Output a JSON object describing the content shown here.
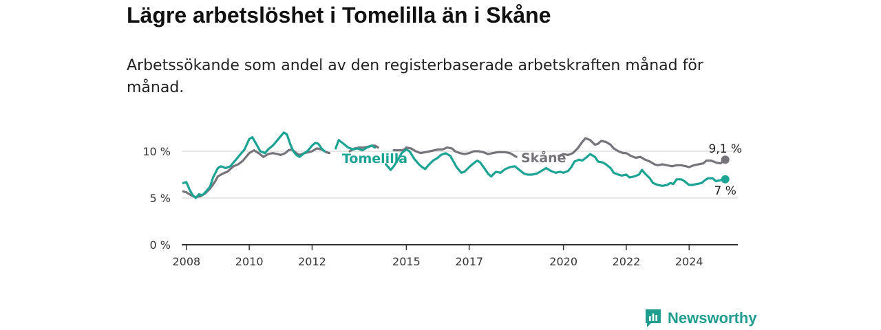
{
  "title": "Lägre arbetslöshet i Tomelilla än i Skåne",
  "subtitle": "Arbetssökande som andel av den registerbaserade arbetskraften månad för månad.",
  "logo": {
    "text": "Newsworthy",
    "icon": "newsworthy-logo-icon"
  },
  "colors": {
    "tomelilla": "#1ba393",
    "skane": "#76737a",
    "axis": "#333333",
    "grid": "#d6d6d6"
  },
  "chart_data": {
    "type": "line",
    "title": "Lägre arbetslöshet i Tomelilla än i Skåne",
    "xlabel": "",
    "ylabel": "",
    "xlim": [
      2007.85,
      2025.55
    ],
    "ylim": [
      0,
      12.5
    ],
    "y_ticks": [
      {
        "value": 0,
        "label": "0 %"
      },
      {
        "value": 5,
        "label": "5 %"
      },
      {
        "value": 10,
        "label": "10 %"
      }
    ],
    "x_ticks": [
      {
        "value": 2008,
        "label": "2008"
      },
      {
        "value": 2010,
        "label": "2010"
      },
      {
        "value": 2012,
        "label": "2012"
      },
      {
        "value": 2015,
        "label": "2015"
      },
      {
        "value": 2017,
        "label": "2017"
      },
      {
        "value": 2020,
        "label": "2020"
      },
      {
        "value": 2022,
        "label": "2022"
      },
      {
        "value": 2024,
        "label": "2024"
      }
    ],
    "series": [
      {
        "name": "Tomelilla",
        "label": "Tomelilla",
        "end_label": "7 %",
        "color": "#1ba393",
        "points": [
          [
            2007.9,
            6.6
          ],
          [
            2008.0,
            6.7
          ],
          [
            2008.1,
            5.9
          ],
          [
            2008.2,
            5.3
          ],
          [
            2008.3,
            5.0
          ],
          [
            2008.4,
            5.4
          ],
          [
            2008.5,
            5.3
          ],
          [
            2008.6,
            5.6
          ],
          [
            2008.75,
            6.2
          ],
          [
            2008.85,
            7.2
          ],
          [
            2009.0,
            8.2
          ],
          [
            2009.1,
            8.4
          ],
          [
            2009.25,
            8.2
          ],
          [
            2009.4,
            8.4
          ],
          [
            2009.55,
            9.0
          ],
          [
            2009.7,
            9.6
          ],
          [
            2009.85,
            10.2
          ],
          [
            2010.0,
            11.3
          ],
          [
            2010.1,
            11.5
          ],
          [
            2010.25,
            10.6
          ],
          [
            2010.35,
            10.0
          ],
          [
            2010.5,
            9.8
          ],
          [
            2010.6,
            10.2
          ],
          [
            2010.75,
            10.6
          ],
          [
            2010.9,
            11.2
          ],
          [
            2011.0,
            11.6
          ],
          [
            2011.1,
            12.0
          ],
          [
            2011.2,
            11.8
          ],
          [
            2011.3,
            10.8
          ],
          [
            2011.4,
            10.0
          ],
          [
            2011.5,
            9.6
          ],
          [
            2011.6,
            9.4
          ],
          [
            2011.75,
            9.8
          ],
          [
            2011.85,
            10.0
          ],
          [
            2012.0,
            10.6
          ],
          [
            2012.1,
            10.9
          ],
          [
            2012.2,
            10.8
          ],
          [
            2012.3,
            10.3
          ],
          [
            2012.4,
            10.0
          ],
          null,
          [
            2012.75,
            10.3
          ],
          [
            2012.85,
            11.2
          ],
          [
            2013.0,
            10.8
          ],
          [
            2013.15,
            10.4
          ],
          [
            2013.3,
            10.2
          ],
          [
            2013.45,
            10.3
          ],
          [
            2013.6,
            10.1
          ],
          [
            2013.75,
            10.4
          ],
          [
            2013.9,
            10.6
          ],
          [
            2014.0,
            10.4
          ],
          null,
          [
            2014.35,
            8.6
          ],
          [
            2014.5,
            8.0
          ],
          [
            2014.6,
            8.4
          ],
          [
            2014.75,
            9.2
          ],
          [
            2014.85,
            9.8
          ],
          [
            2015.0,
            10.2
          ],
          [
            2015.1,
            10.0
          ],
          [
            2015.25,
            9.2
          ],
          [
            2015.4,
            8.6
          ],
          [
            2015.5,
            8.3
          ],
          [
            2015.6,
            8.1
          ],
          [
            2015.7,
            8.5
          ],
          [
            2015.85,
            9.0
          ],
          [
            2016.0,
            9.3
          ],
          [
            2016.1,
            9.6
          ],
          [
            2016.25,
            9.8
          ],
          [
            2016.4,
            9.5
          ],
          [
            2016.5,
            8.9
          ],
          [
            2016.6,
            8.3
          ],
          [
            2016.75,
            7.7
          ],
          [
            2016.85,
            7.8
          ],
          [
            2017.0,
            8.3
          ],
          [
            2017.1,
            8.6
          ],
          [
            2017.25,
            9.0
          ],
          [
            2017.35,
            8.8
          ],
          [
            2017.5,
            8.1
          ],
          [
            2017.6,
            7.6
          ],
          [
            2017.7,
            7.3
          ],
          [
            2017.85,
            7.8
          ],
          [
            2018.0,
            7.7
          ],
          [
            2018.15,
            8.1
          ],
          [
            2018.3,
            8.3
          ],
          [
            2018.45,
            8.4
          ],
          [
            2018.6,
            8.0
          ],
          [
            2018.75,
            7.6
          ],
          [
            2018.85,
            7.5
          ],
          [
            2019.0,
            7.5
          ],
          [
            2019.15,
            7.6
          ],
          [
            2019.3,
            7.9
          ],
          [
            2019.45,
            8.2
          ],
          [
            2019.6,
            7.9
          ],
          [
            2019.75,
            7.7
          ],
          [
            2019.9,
            7.8
          ],
          [
            2020.0,
            7.7
          ],
          [
            2020.15,
            7.9
          ],
          [
            2020.25,
            8.3
          ],
          [
            2020.35,
            8.9
          ],
          [
            2020.5,
            9.1
          ],
          [
            2020.6,
            9.0
          ],
          [
            2020.75,
            9.4
          ],
          [
            2020.85,
            9.7
          ],
          [
            2021.0,
            9.4
          ],
          [
            2021.1,
            8.9
          ],
          [
            2021.25,
            8.8
          ],
          [
            2021.35,
            8.6
          ],
          [
            2021.5,
            8.2
          ],
          [
            2021.6,
            7.7
          ],
          [
            2021.75,
            7.5
          ],
          [
            2021.85,
            7.4
          ],
          [
            2022.0,
            7.5
          ],
          [
            2022.1,
            7.2
          ],
          [
            2022.25,
            7.3
          ],
          [
            2022.4,
            7.5
          ],
          [
            2022.5,
            8.0
          ],
          [
            2022.6,
            7.6
          ],
          [
            2022.75,
            7.1
          ],
          [
            2022.85,
            6.6
          ],
          [
            2023.0,
            6.4
          ],
          [
            2023.15,
            6.3
          ],
          [
            2023.3,
            6.4
          ],
          [
            2023.4,
            6.6
          ],
          [
            2023.5,
            6.5
          ],
          [
            2023.6,
            7.0
          ],
          [
            2023.75,
            7.0
          ],
          [
            2023.85,
            6.8
          ],
          [
            2024.0,
            6.4
          ],
          [
            2024.1,
            6.4
          ],
          [
            2024.25,
            6.5
          ],
          [
            2024.4,
            6.6
          ],
          [
            2024.5,
            6.9
          ],
          [
            2024.6,
            7.1
          ],
          [
            2024.75,
            7.1
          ],
          [
            2024.85,
            6.8
          ],
          [
            2025.0,
            6.9
          ],
          [
            2025.1,
            7.1
          ],
          [
            2025.15,
            7.0
          ]
        ]
      },
      {
        "name": "Skåne",
        "label": "Skåne",
        "end_label": "9,1 %",
        "color": "#76737a",
        "points": [
          [
            2007.9,
            5.7
          ],
          [
            2008.0,
            5.6
          ],
          [
            2008.1,
            5.4
          ],
          [
            2008.2,
            5.2
          ],
          [
            2008.3,
            5.1
          ],
          [
            2008.45,
            5.2
          ],
          [
            2008.6,
            5.5
          ],
          [
            2008.75,
            6.0
          ],
          [
            2008.9,
            6.7
          ],
          [
            2009.0,
            7.3
          ],
          [
            2009.15,
            7.6
          ],
          [
            2009.3,
            7.8
          ],
          [
            2009.5,
            8.4
          ],
          [
            2009.65,
            8.6
          ],
          [
            2009.8,
            9.0
          ],
          [
            2009.9,
            9.4
          ],
          [
            2010.0,
            9.8
          ],
          [
            2010.15,
            10.1
          ],
          [
            2010.3,
            9.8
          ],
          [
            2010.45,
            9.4
          ],
          [
            2010.6,
            9.7
          ],
          [
            2010.75,
            9.8
          ],
          [
            2010.9,
            9.7
          ],
          [
            2011.0,
            9.6
          ],
          [
            2011.15,
            9.8
          ],
          [
            2011.25,
            10.1
          ],
          [
            2011.35,
            10.2
          ],
          [
            2011.5,
            9.8
          ],
          [
            2011.6,
            9.6
          ],
          [
            2011.75,
            9.8
          ],
          [
            2011.9,
            9.9
          ],
          [
            2012.0,
            10.0
          ],
          [
            2012.15,
            10.3
          ],
          [
            2012.3,
            10.2
          ],
          [
            2012.45,
            9.9
          ],
          [
            2012.55,
            9.8
          ],
          null,
          [
            2013.2,
            10.0
          ],
          [
            2013.35,
            10.3
          ],
          [
            2013.5,
            10.4
          ],
          [
            2013.65,
            10.4
          ],
          [
            2013.8,
            10.5
          ],
          [
            2013.9,
            10.6
          ],
          [
            2014.0,
            10.6
          ],
          [
            2014.1,
            10.4
          ],
          null,
          [
            2014.6,
            10.1
          ],
          [
            2014.75,
            10.1
          ],
          [
            2014.9,
            10.1
          ],
          [
            2015.0,
            10.4
          ],
          [
            2015.15,
            10.3
          ],
          [
            2015.3,
            10.0
          ],
          [
            2015.45,
            9.8
          ],
          [
            2015.6,
            9.9
          ],
          [
            2015.75,
            10.0
          ],
          [
            2015.9,
            10.1
          ],
          [
            2016.0,
            10.2
          ],
          [
            2016.15,
            10.2
          ],
          [
            2016.3,
            10.4
          ],
          [
            2016.45,
            10.3
          ],
          [
            2016.55,
            10.0
          ],
          [
            2016.7,
            9.8
          ],
          [
            2016.85,
            9.7
          ],
          [
            2017.0,
            9.8
          ],
          [
            2017.15,
            10.0
          ],
          [
            2017.3,
            10.0
          ],
          [
            2017.45,
            9.9
          ],
          [
            2017.6,
            9.7
          ],
          [
            2017.75,
            9.8
          ],
          [
            2017.9,
            9.9
          ],
          [
            2018.0,
            9.9
          ],
          [
            2018.15,
            9.9
          ],
          [
            2018.3,
            9.8
          ],
          [
            2018.4,
            9.6
          ],
          [
            2018.5,
            9.4
          ],
          null,
          [
            2019.85,
            9.5
          ],
          [
            2020.0,
            9.7
          ],
          [
            2020.15,
            9.6
          ],
          [
            2020.3,
            9.8
          ],
          [
            2020.45,
            10.3
          ],
          [
            2020.6,
            11.0
          ],
          [
            2020.7,
            11.4
          ],
          [
            2020.85,
            11.2
          ],
          [
            2021.0,
            10.7
          ],
          [
            2021.1,
            10.8
          ],
          [
            2021.2,
            11.1
          ],
          [
            2021.35,
            11.0
          ],
          [
            2021.5,
            10.7
          ],
          [
            2021.6,
            10.3
          ],
          [
            2021.75,
            10.0
          ],
          [
            2021.9,
            9.8
          ],
          [
            2022.0,
            9.8
          ],
          [
            2022.15,
            9.5
          ],
          [
            2022.3,
            9.3
          ],
          [
            2022.45,
            9.4
          ],
          [
            2022.6,
            9.1
          ],
          [
            2022.75,
            8.9
          ],
          [
            2022.9,
            8.6
          ],
          [
            2023.0,
            8.5
          ],
          [
            2023.15,
            8.6
          ],
          [
            2023.3,
            8.5
          ],
          [
            2023.45,
            8.4
          ],
          [
            2023.6,
            8.5
          ],
          [
            2023.75,
            8.5
          ],
          [
            2023.9,
            8.4
          ],
          [
            2024.0,
            8.3
          ],
          [
            2024.15,
            8.5
          ],
          [
            2024.3,
            8.6
          ],
          [
            2024.45,
            8.7
          ],
          [
            2024.55,
            9.0
          ],
          [
            2024.7,
            9.0
          ],
          [
            2024.85,
            8.8
          ],
          [
            2025.0,
            8.7
          ],
          [
            2025.1,
            9.0
          ],
          [
            2025.15,
            9.1
          ]
        ]
      }
    ]
  }
}
